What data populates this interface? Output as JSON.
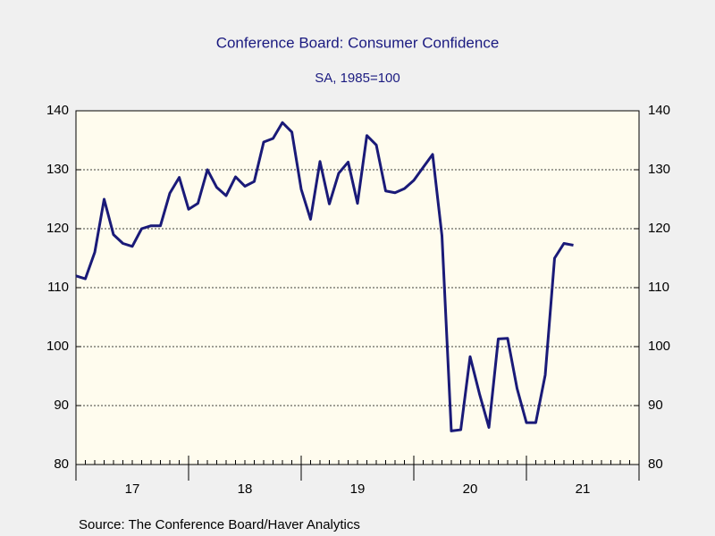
{
  "chart_data": {
    "type": "line",
    "title": "Conference Board: Consumer Confidence",
    "subtitle": "SA, 1985=100",
    "source": "Source:  The Conference Board/Haver Analytics",
    "x": [
      2017.0,
      2017.083,
      2017.167,
      2017.25,
      2017.333,
      2017.417,
      2017.5,
      2017.583,
      2017.667,
      2017.75,
      2017.833,
      2017.917,
      2018.0,
      2018.083,
      2018.167,
      2018.25,
      2018.333,
      2018.417,
      2018.5,
      2018.583,
      2018.667,
      2018.75,
      2018.833,
      2018.917,
      2019.0,
      2019.083,
      2019.167,
      2019.25,
      2019.333,
      2019.417,
      2019.5,
      2019.583,
      2019.667,
      2019.75,
      2019.833,
      2019.917,
      2020.0,
      2020.083,
      2020.167,
      2020.25,
      2020.333,
      2020.417,
      2020.5,
      2020.583,
      2020.667,
      2020.75,
      2020.833,
      2020.917,
      2021.0,
      2021.083,
      2021.167,
      2021.25,
      2021.333,
      2021.417
    ],
    "series": [
      {
        "name": "Consumer Confidence",
        "color": "#1a1a78",
        "values": [
          112,
          111.5,
          116,
          125,
          119,
          117.5,
          117,
          120,
          120.5,
          120.5,
          126,
          128.7,
          123.3,
          124.3,
          130,
          127,
          125.6,
          128.8,
          127.2,
          128,
          134.7,
          135.3,
          138,
          136.4,
          126.7,
          121.6,
          131.4,
          124.2,
          129.4,
          131.3,
          124.3,
          135.8,
          134.2,
          126.4,
          126.1,
          126.8,
          128.2,
          130.4,
          132.6,
          118.8,
          85.7,
          85.9,
          98.3,
          92,
          86.3,
          101.3,
          101.4,
          92.9,
          87.1,
          87.1,
          95.2,
          115,
          117.5,
          117.2
        ]
      }
    ],
    "xlim": [
      2017.0,
      2022.0
    ],
    "xticks": [
      {
        "value": 2017.5,
        "label": "17"
      },
      {
        "value": 2018.5,
        "label": "18"
      },
      {
        "value": 2019.5,
        "label": "19"
      },
      {
        "value": 2020.5,
        "label": "20"
      },
      {
        "value": 2021.5,
        "label": "21"
      }
    ],
    "ylim": [
      80,
      140
    ],
    "yticks": [
      80,
      90,
      100,
      110,
      120,
      130,
      140
    ],
    "y2lim": [
      80,
      140
    ],
    "y2ticks": [
      80,
      90,
      100,
      110,
      120,
      130,
      140
    ],
    "grid": true
  }
}
